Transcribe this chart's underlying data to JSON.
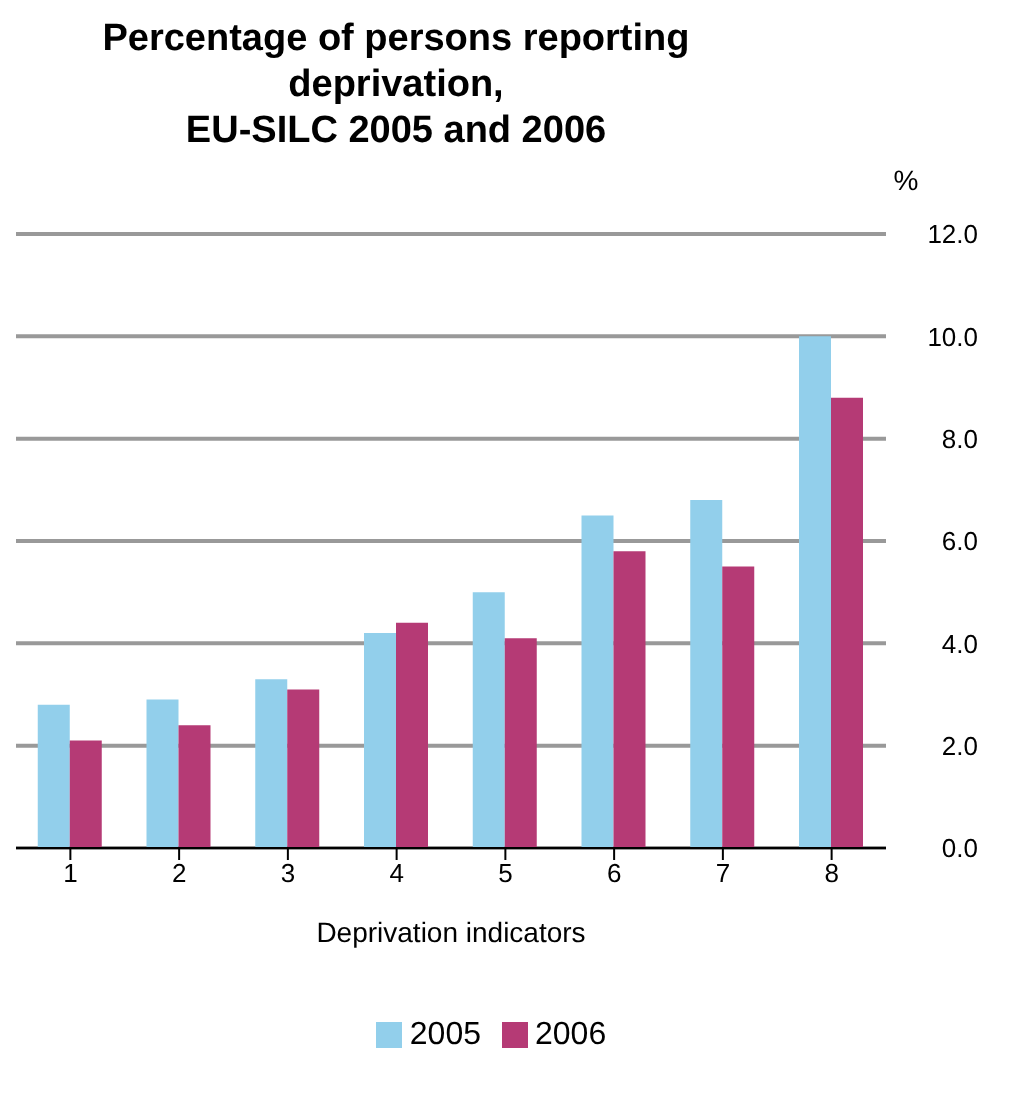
{
  "chart_data": {
    "type": "bar",
    "title": "Percentage of persons reporting deprivation,\nEU-SILC 2005 and 2006",
    "xlabel": "Deprivation indicators",
    "ylabel": "%",
    "categories": [
      "1",
      "2",
      "3",
      "4",
      "5",
      "6",
      "7",
      "8"
    ],
    "series": [
      {
        "name": "2005",
        "color": "#92cfeb",
        "values": [
          2.8,
          2.9,
          3.3,
          4.2,
          5.0,
          6.5,
          6.8,
          10.0
        ]
      },
      {
        "name": "2006",
        "color": "#b53a75",
        "values": [
          2.1,
          2.4,
          3.1,
          4.4,
          4.1,
          5.8,
          5.5,
          8.8
        ]
      }
    ],
    "ylim": [
      0,
      12
    ],
    "yticks": [
      {
        "value": 0,
        "label": "0.0"
      },
      {
        "value": 2,
        "label": "2.0"
      },
      {
        "value": 4,
        "label": "4.0"
      },
      {
        "value": 6,
        "label": "6.0"
      },
      {
        "value": 8,
        "label": "8.0"
      },
      {
        "value": 10,
        "label": "10.0"
      },
      {
        "value": 12,
        "label": "12.0"
      }
    ],
    "grid": "y",
    "legend": "bottom"
  }
}
